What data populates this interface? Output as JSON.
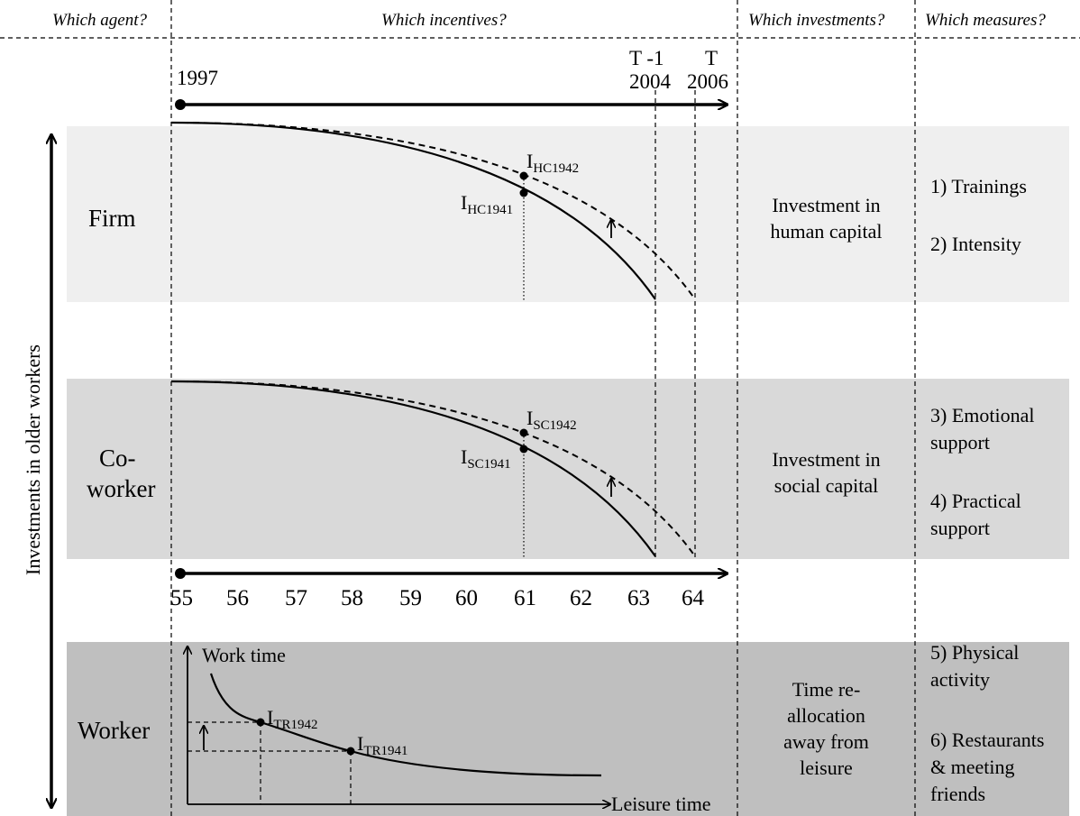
{
  "headers": {
    "agent": "Which agent?",
    "incentives": "Which incentives?",
    "investments": "Which investments?",
    "measures": "Which measures?"
  },
  "vertical_axis_label": "Investments in older workers",
  "timeline": {
    "start_year": "1997",
    "t_minus_1": "T -1",
    "t_minus_1_year": "2004",
    "t": "T",
    "t_year": "2006"
  },
  "age_axis": [
    "55",
    "56",
    "57",
    "58",
    "59",
    "60",
    "61",
    "62",
    "63",
    "64"
  ],
  "rows": {
    "firm": {
      "agent": "Firm",
      "investment": [
        "Investment in",
        "human capital"
      ],
      "measures": [
        "1) Trainings",
        "2) Intensity"
      ],
      "point_upper": {
        "main": "I",
        "sub": "HC1942"
      },
      "point_lower": {
        "main": "I",
        "sub": "HC1941"
      }
    },
    "coworker": {
      "agent": [
        "Co-",
        "worker"
      ],
      "investment": [
        "Investment in",
        "social capital"
      ],
      "measures": [
        "3) Emotional",
        "support",
        "4) Practical",
        "support"
      ],
      "point_upper": {
        "main": "I",
        "sub": "SC1942"
      },
      "point_lower": {
        "main": "I",
        "sub": "SC1941"
      }
    },
    "worker": {
      "agent": "Worker",
      "investment": [
        "Time re-",
        "allocation",
        "away from",
        "leisure"
      ],
      "measures": [
        "5) Physical",
        "activity",
        "6) Restaurants",
        "& meeting",
        "friends"
      ],
      "y_axis": "Work time",
      "x_axis": "Leisure time",
      "point_upper": {
        "main": "I",
        "sub": "TR1942"
      },
      "point_lower": {
        "main": "I",
        "sub": "TR1941"
      }
    }
  },
  "colors": {
    "firm_band": "#efefef",
    "coworker_band": "#d9d9d9",
    "worker_band": "#bfbfbf"
  }
}
